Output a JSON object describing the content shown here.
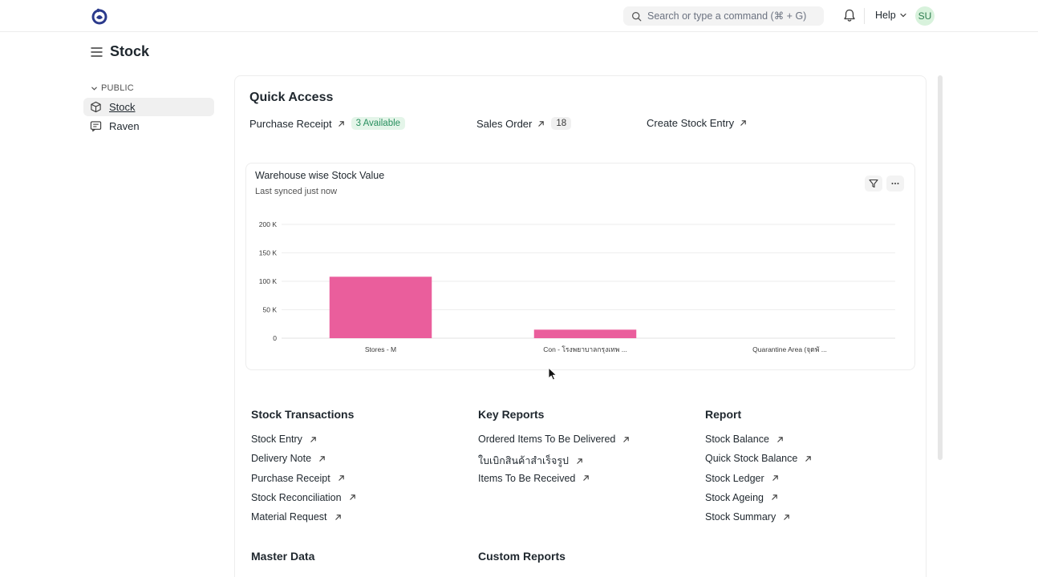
{
  "navbar": {
    "search_placeholder": "Search or type a command (⌘ + G)",
    "help_label": "Help",
    "avatar_initials": "SU"
  },
  "page": {
    "title": "Stock"
  },
  "sidebar": {
    "section_label": "PUBLIC",
    "items": [
      {
        "label": "Stock",
        "icon": "cube-icon",
        "active": true
      },
      {
        "label": "Raven",
        "icon": "message-icon",
        "active": false
      }
    ]
  },
  "quick_access": {
    "title": "Quick Access",
    "shortcuts": [
      {
        "label": "Purchase Receipt",
        "badge": "3 Available"
      },
      {
        "label": "Sales Order",
        "badge": "18"
      },
      {
        "label": "Create Stock Entry"
      }
    ]
  },
  "chart_card": {
    "title": "Warehouse wise Stock Value",
    "subtitle": "Last synced just now"
  },
  "chart_data": {
    "type": "bar",
    "categories": [
      "Stores - M",
      "Con - โรงพยาบาลกรุงเทพ ...",
      "Quarantine Area (จุดพั ..."
    ],
    "values": [
      108000,
      15000,
      0
    ],
    "ylim": [
      0,
      200000
    ],
    "yticks": [
      0,
      50000,
      100000,
      150000,
      200000
    ],
    "ytick_labels": [
      "0",
      "50 K",
      "100 K",
      "150 K",
      "200 K"
    ],
    "bar_color": "#ea5e9c",
    "grid": true,
    "title": "",
    "xlabel": "",
    "ylabel": ""
  },
  "sections": {
    "stock_transactions": {
      "title": "Stock Transactions",
      "links": [
        "Stock Entry",
        "Delivery Note",
        "Purchase Receipt",
        "Stock Reconciliation",
        "Material Request"
      ]
    },
    "key_reports": {
      "title": "Key Reports",
      "links": [
        "Ordered Items To Be Delivered",
        "ใบเบิกสินค้าสำเร็จรูป",
        "Items To Be Received"
      ]
    },
    "report": {
      "title": "Report",
      "links": [
        "Stock Balance",
        "Quick Stock Balance",
        "Stock Ledger",
        "Stock Ageing",
        "Stock Summary"
      ]
    },
    "master_data": {
      "title": "Master Data"
    },
    "custom_reports": {
      "title": "Custom Reports"
    }
  }
}
